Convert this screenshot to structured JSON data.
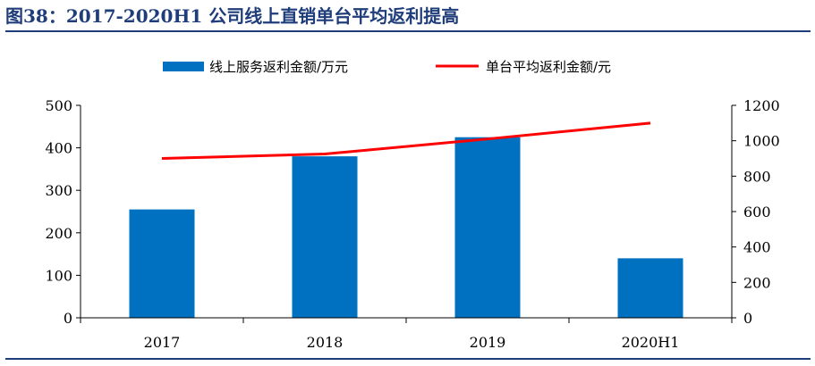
{
  "title": "图38：2017-2020H1 公司线上直销单台平均返利提高",
  "colors": {
    "bar": "#0070C0",
    "line": "#FF0000",
    "title": "#1f3d7a",
    "axis": "#000000"
  },
  "chart_data": {
    "type": "bar",
    "title": "图38：2017-2020H1 公司线上直销单台平均返利提高",
    "categories": [
      "2017",
      "2018",
      "2019",
      "2020H1"
    ],
    "series": [
      {
        "name": "线上服务返利金额/万元",
        "type": "bar",
        "axis": "left",
        "values": [
          255,
          380,
          425,
          140
        ]
      },
      {
        "name": "单台平均返利金额/元",
        "type": "line",
        "axis": "right",
        "values": [
          900,
          925,
          1010,
          1100
        ]
      }
    ],
    "y_left": {
      "min": 0,
      "max": 500,
      "ticks": [
        0,
        100,
        200,
        300,
        400,
        500
      ]
    },
    "y_right": {
      "min": 0,
      "max": 1200,
      "ticks": [
        0,
        200,
        400,
        600,
        800,
        1000,
        1200
      ]
    },
    "legend_position": "top",
    "grid": false
  }
}
